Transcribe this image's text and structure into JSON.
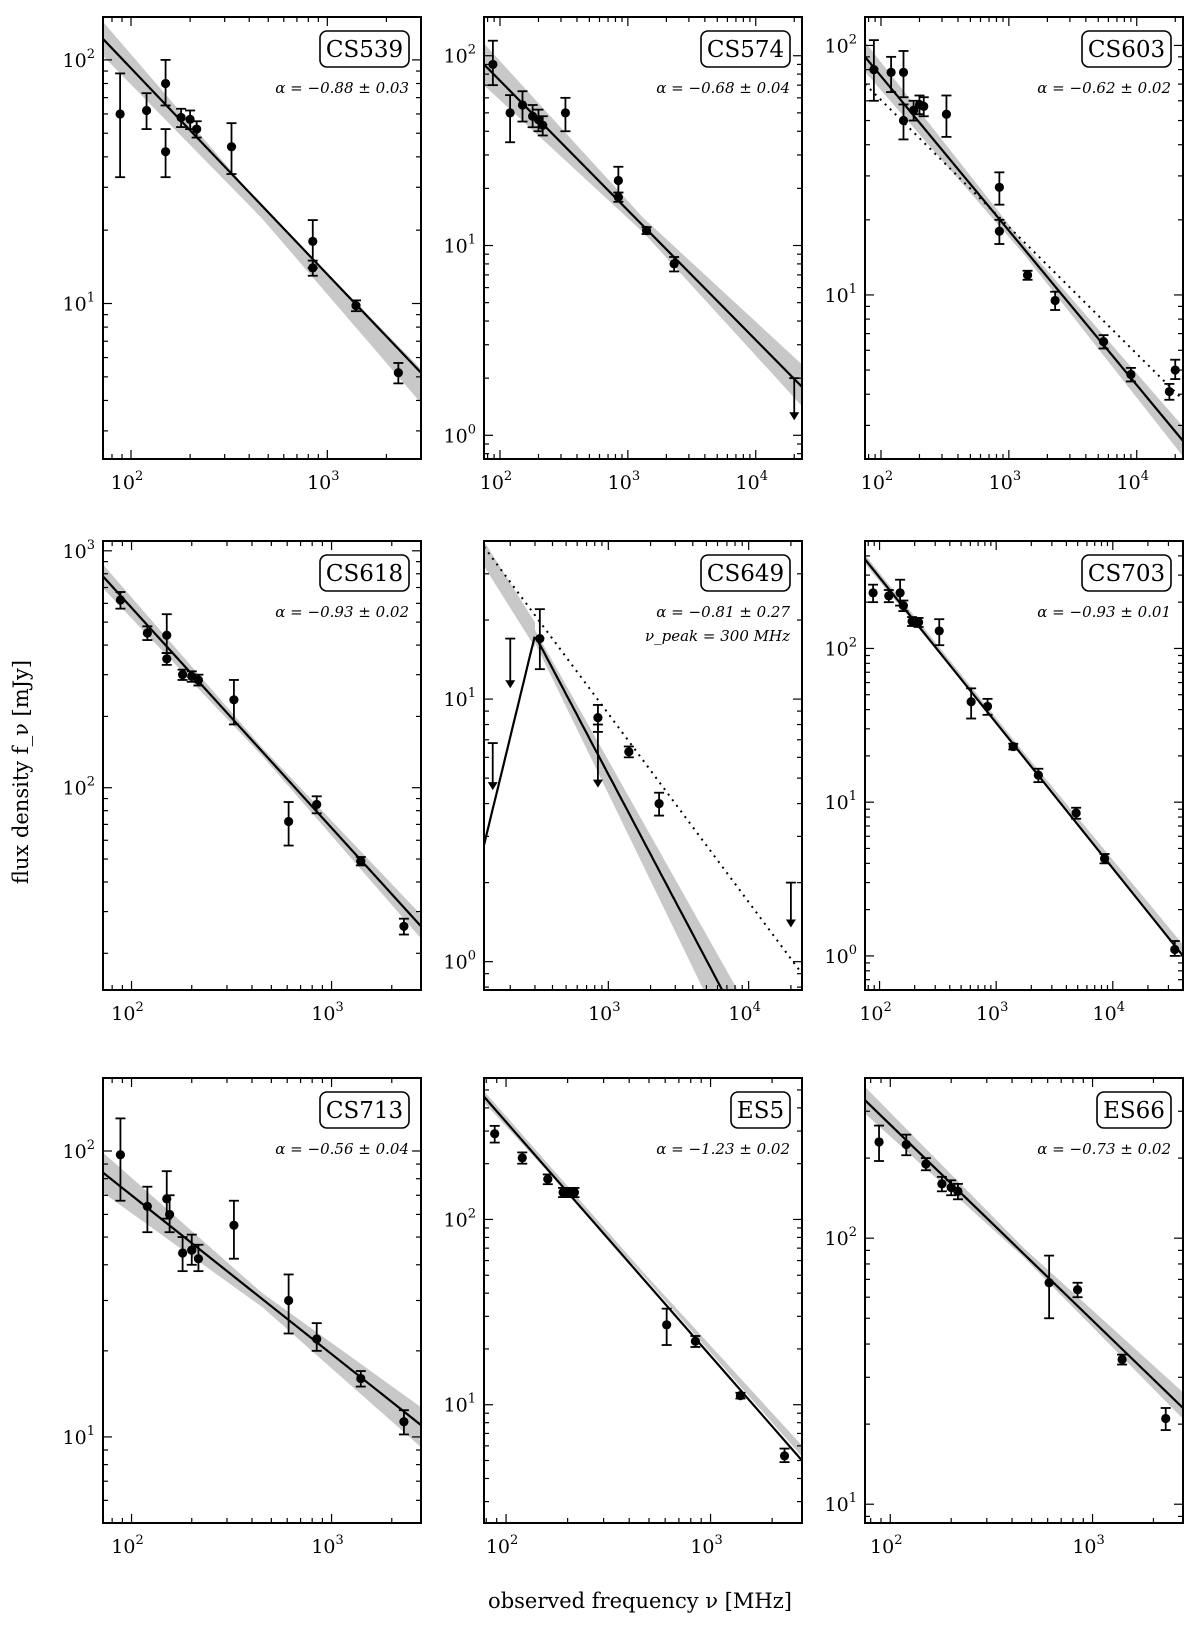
{
  "figure": {
    "xlabel": "observed frequency ν [MHz]",
    "ylabel": "flux density f_ν [mJy]"
  },
  "chart_data": [
    {
      "type": "scatter",
      "source": "CS539",
      "alpha_text": "α = −0.88 ± 0.03",
      "xlim": [
        72,
        3000
      ],
      "ylim": [
        2.3,
        150
      ],
      "xticks": [
        2,
        3
      ],
      "yticks": [
        1,
        2
      ],
      "fit": {
        "slope": -0.88,
        "x1": 72,
        "y1": 122,
        "x2": 3000,
        "y2": 5.2,
        "band": 0.07
      },
      "points": [
        {
          "x": 88,
          "y": 60,
          "lo": 33,
          "hi": 88
        },
        {
          "x": 120,
          "y": 62,
          "lo": 52,
          "hi": 73
        },
        {
          "x": 150,
          "y": 80,
          "lo": 65,
          "hi": 100
        },
        {
          "x": 150,
          "y": 42,
          "lo": 33,
          "hi": 52
        },
        {
          "x": 180,
          "y": 58,
          "lo": 53,
          "hi": 63
        },
        {
          "x": 200,
          "y": 57,
          "lo": 52,
          "hi": 62
        },
        {
          "x": 216,
          "y": 52,
          "lo": 48,
          "hi": 56
        },
        {
          "x": 325,
          "y": 44,
          "lo": 34,
          "hi": 55
        },
        {
          "x": 843,
          "y": 18,
          "lo": 14,
          "hi": 22
        },
        {
          "x": 843,
          "y": 14,
          "lo": 13,
          "hi": 15
        },
        {
          "x": 1400,
          "y": 9.8,
          "lo": 9.3,
          "hi": 10.3
        },
        {
          "x": 2300,
          "y": 5.2,
          "lo": 4.7,
          "hi": 5.7
        }
      ],
      "limits": []
    },
    {
      "type": "scatter",
      "source": "CS574",
      "alpha_text": "α = −0.68 ± 0.04",
      "xlim": [
        75,
        23000
      ],
      "ylim": [
        0.75,
        160
      ],
      "xticks": [
        2,
        3,
        4
      ],
      "yticks": [
        0,
        1,
        2
      ],
      "fit": {
        "slope": -0.68,
        "x1": 75,
        "y1": 90,
        "x2": 23000,
        "y2": 1.8,
        "band": 0.11
      },
      "points": [
        {
          "x": 88,
          "y": 90,
          "lo": 70,
          "hi": 120
        },
        {
          "x": 120,
          "y": 50,
          "lo": 35,
          "hi": 62
        },
        {
          "x": 150,
          "y": 55,
          "lo": 45,
          "hi": 65
        },
        {
          "x": 180,
          "y": 48,
          "lo": 42,
          "hi": 55
        },
        {
          "x": 200,
          "y": 46,
          "lo": 40,
          "hi": 52
        },
        {
          "x": 216,
          "y": 43,
          "lo": 38,
          "hi": 48
        },
        {
          "x": 325,
          "y": 50,
          "lo": 40,
          "hi": 60
        },
        {
          "x": 843,
          "y": 22,
          "lo": 19,
          "hi": 26
        },
        {
          "x": 843,
          "y": 18,
          "lo": 17,
          "hi": 19
        },
        {
          "x": 1400,
          "y": 12,
          "lo": 11.5,
          "hi": 12.5
        },
        {
          "x": 2300,
          "y": 8,
          "lo": 7.3,
          "hi": 8.7
        }
      ],
      "limits": [
        {
          "x": 20000,
          "y": 2.0,
          "tip": 1.2
        }
      ]
    },
    {
      "type": "scatter",
      "source": "CS603",
      "alpha_text": "α = −0.62 ± 0.02",
      "xlim": [
        75,
        23000
      ],
      "ylim": [
        2.2,
        130
      ],
      "xticks": [
        2,
        3,
        4
      ],
      "yticks": [
        1,
        2
      ],
      "fit": {
        "slope": -0.62,
        "x1": 75,
        "y1": 90,
        "x2": 23000,
        "y2": 2.6,
        "band": 0.06
      },
      "dotted": {
        "x1": 75,
        "y1": 70,
        "x2": 23000,
        "y2": 3.8
      },
      "points": [
        {
          "x": 88,
          "y": 80,
          "lo": 60,
          "hi": 105
        },
        {
          "x": 120,
          "y": 78,
          "lo": 65,
          "hi": 90
        },
        {
          "x": 150,
          "y": 78,
          "lo": 62,
          "hi": 95
        },
        {
          "x": 150,
          "y": 50,
          "lo": 42,
          "hi": 58
        },
        {
          "x": 180,
          "y": 55,
          "lo": 50,
          "hi": 60
        },
        {
          "x": 200,
          "y": 58,
          "lo": 53,
          "hi": 63
        },
        {
          "x": 216,
          "y": 57,
          "lo": 52,
          "hi": 62
        },
        {
          "x": 325,
          "y": 53,
          "lo": 43,
          "hi": 63
        },
        {
          "x": 843,
          "y": 27,
          "lo": 23,
          "hi": 31
        },
        {
          "x": 843,
          "y": 18,
          "lo": 16,
          "hi": 20
        },
        {
          "x": 1400,
          "y": 12,
          "lo": 11.5,
          "hi": 12.5
        },
        {
          "x": 2300,
          "y": 9.5,
          "lo": 8.7,
          "hi": 10.3
        },
        {
          "x": 5500,
          "y": 6.5,
          "lo": 6.1,
          "hi": 6.9
        },
        {
          "x": 9000,
          "y": 4.8,
          "lo": 4.5,
          "hi": 5.1
        },
        {
          "x": 18000,
          "y": 4.1,
          "lo": 3.8,
          "hi": 4.4
        },
        {
          "x": 20000,
          "y": 5.0,
          "lo": 4.6,
          "hi": 5.5
        }
      ],
      "limits": []
    },
    {
      "type": "scatter",
      "source": "CS618",
      "alpha_text": "α = −0.93 ± 0.02",
      "xlim": [
        72,
        2800
      ],
      "ylim": [
        14,
        1100
      ],
      "xticks": [
        2,
        3
      ],
      "yticks": [
        2,
        3
      ],
      "fit": {
        "slope": -0.93,
        "x1": 72,
        "y1": 780,
        "x2": 2800,
        "y2": 26,
        "band": 0.05
      },
      "points": [
        {
          "x": 88,
          "y": 620,
          "lo": 570,
          "hi": 670
        },
        {
          "x": 120,
          "y": 450,
          "lo": 420,
          "hi": 480
        },
        {
          "x": 150,
          "y": 440,
          "lo": 370,
          "hi": 540
        },
        {
          "x": 150,
          "y": 350,
          "lo": 330,
          "hi": 370
        },
        {
          "x": 180,
          "y": 300,
          "lo": 285,
          "hi": 315
        },
        {
          "x": 200,
          "y": 295,
          "lo": 280,
          "hi": 310
        },
        {
          "x": 216,
          "y": 285,
          "lo": 270,
          "hi": 300
        },
        {
          "x": 325,
          "y": 235,
          "lo": 185,
          "hi": 285
        },
        {
          "x": 610,
          "y": 72,
          "lo": 57,
          "hi": 87
        },
        {
          "x": 843,
          "y": 85,
          "lo": 78,
          "hi": 92
        },
        {
          "x": 1400,
          "y": 49,
          "lo": 47,
          "hi": 51
        },
        {
          "x": 2300,
          "y": 26,
          "lo": 24,
          "hi": 28
        }
      ],
      "limits": []
    },
    {
      "type": "scatter",
      "source": "CS649",
      "alpha_text": "α = −0.81 ± 0.27",
      "peak_text": "ν_peak = 300 MHz",
      "xlim": [
        130,
        24000
      ],
      "ylim": [
        0.78,
        40
      ],
      "xticks": [
        3,
        4
      ],
      "yticks": [
        0,
        1
      ],
      "curve": {
        "peak_nu": 300,
        "peak_s": 17.5,
        "alpha": -0.81,
        "rise": 2.2
      },
      "dotted": {
        "x1": 130,
        "y1": 38,
        "x2": 24000,
        "y2": 0.9
      },
      "band_shape": "peaked",
      "points": [
        {
          "x": 325,
          "y": 17,
          "lo": 13,
          "hi": 22
        },
        {
          "x": 843,
          "y": 8.5,
          "lo": 7.5,
          "hi": 9.5
        },
        {
          "x": 1400,
          "y": 6.3,
          "lo": 6.0,
          "hi": 6.6
        },
        {
          "x": 2300,
          "y": 4.0,
          "lo": 3.6,
          "hi": 4.4
        }
      ],
      "limits": [
        {
          "x": 150,
          "y": 6.8,
          "tip": 4.5
        },
        {
          "x": 200,
          "y": 17,
          "tip": 11
        },
        {
          "x": 843,
          "y": 8.0,
          "tip": 4.6
        },
        {
          "x": 20000,
          "y": 2.0,
          "tip": 1.35
        }
      ]
    },
    {
      "type": "scatter",
      "source": "CS703",
      "alpha_text": "α = −0.93 ± 0.01",
      "xlim": [
        75,
        40000
      ],
      "ylim": [
        0.6,
        500
      ],
      "xticks": [
        2,
        3,
        4
      ],
      "yticks": [
        0,
        1,
        2
      ],
      "fit": {
        "slope": -0.93,
        "x1": 75,
        "y1": 380,
        "x2": 40000,
        "y2": 1.0,
        "band": 0.03
      },
      "points": [
        {
          "x": 88,
          "y": 230,
          "lo": 200,
          "hi": 260
        },
        {
          "x": 120,
          "y": 220,
          "lo": 200,
          "hi": 240
        },
        {
          "x": 150,
          "y": 230,
          "lo": 190,
          "hi": 280
        },
        {
          "x": 160,
          "y": 190,
          "lo": 175,
          "hi": 205
        },
        {
          "x": 190,
          "y": 150,
          "lo": 140,
          "hi": 160
        },
        {
          "x": 216,
          "y": 148,
          "lo": 138,
          "hi": 158
        },
        {
          "x": 325,
          "y": 130,
          "lo": 105,
          "hi": 155
        },
        {
          "x": 610,
          "y": 45,
          "lo": 35,
          "hi": 55
        },
        {
          "x": 843,
          "y": 42,
          "lo": 37,
          "hi": 47
        },
        {
          "x": 1400,
          "y": 23,
          "lo": 22,
          "hi": 24
        },
        {
          "x": 2300,
          "y": 15,
          "lo": 13.5,
          "hi": 16.5
        },
        {
          "x": 4850,
          "y": 8.5,
          "lo": 7.8,
          "hi": 9.2
        },
        {
          "x": 8500,
          "y": 4.3,
          "lo": 4.0,
          "hi": 4.6
        },
        {
          "x": 34000,
          "y": 1.1,
          "lo": 1.0,
          "hi": 1.25
        }
      ],
      "limits": []
    },
    {
      "type": "scatter",
      "source": "CS713",
      "alpha_text": "α = −0.56 ± 0.04",
      "xlim": [
        72,
        2800
      ],
      "ylim": [
        5,
        180
      ],
      "xticks": [
        2,
        3
      ],
      "yticks": [
        1,
        2
      ],
      "fit": {
        "slope": -0.56,
        "x1": 72,
        "y1": 84,
        "x2": 2800,
        "y2": 11,
        "band": 0.07
      },
      "points": [
        {
          "x": 88,
          "y": 97,
          "lo": 67,
          "hi": 130
        },
        {
          "x": 120,
          "y": 64,
          "lo": 52,
          "hi": 75
        },
        {
          "x": 150,
          "y": 68,
          "lo": 58,
          "hi": 85
        },
        {
          "x": 155,
          "y": 60,
          "lo": 52,
          "hi": 70
        },
        {
          "x": 180,
          "y": 44,
          "lo": 38,
          "hi": 50
        },
        {
          "x": 200,
          "y": 45,
          "lo": 40,
          "hi": 51
        },
        {
          "x": 216,
          "y": 42,
          "lo": 38,
          "hi": 47
        },
        {
          "x": 325,
          "y": 55,
          "lo": 42,
          "hi": 67
        },
        {
          "x": 610,
          "y": 30,
          "lo": 23,
          "hi": 37
        },
        {
          "x": 843,
          "y": 22,
          "lo": 20,
          "hi": 25
        },
        {
          "x": 1400,
          "y": 16,
          "lo": 15,
          "hi": 17
        },
        {
          "x": 2300,
          "y": 11.3,
          "lo": 10.2,
          "hi": 12.4
        }
      ],
      "limits": []
    },
    {
      "type": "scatter",
      "source": "ES5",
      "alpha_text": "α = −1.23 ± 0.02",
      "xlim": [
        78,
        2800
      ],
      "ylim": [
        2.3,
        580
      ],
      "xticks": [
        2,
        3
      ],
      "yticks": [
        1,
        2
      ],
      "fit": {
        "slope": -1.23,
        "x1": 78,
        "y1": 460,
        "x2": 2800,
        "y2": 5.0,
        "band": 0.03
      },
      "points": [
        {
          "x": 88,
          "y": 290,
          "lo": 260,
          "hi": 320
        },
        {
          "x": 120,
          "y": 215,
          "lo": 200,
          "hi": 230
        },
        {
          "x": 160,
          "y": 165,
          "lo": 155,
          "hi": 175
        },
        {
          "x": 190,
          "y": 140,
          "lo": 132,
          "hi": 148
        },
        {
          "x": 200,
          "y": 140,
          "lo": 132,
          "hi": 148
        },
        {
          "x": 216,
          "y": 140,
          "lo": 132,
          "hi": 148
        },
        {
          "x": 610,
          "y": 27,
          "lo": 21,
          "hi": 33
        },
        {
          "x": 843,
          "y": 22,
          "lo": 20.5,
          "hi": 23.5
        },
        {
          "x": 1400,
          "y": 11.2,
          "lo": 10.8,
          "hi": 11.6
        },
        {
          "x": 2300,
          "y": 5.3,
          "lo": 4.9,
          "hi": 5.8
        }
      ],
      "limits": []
    },
    {
      "type": "scatter",
      "source": "ES66",
      "alpha_text": "α = −0.73 ± 0.02",
      "xlim": [
        75,
        2800
      ],
      "ylim": [
        8.5,
        400
      ],
      "xticks": [
        2,
        3
      ],
      "yticks": [
        1,
        2
      ],
      "fit": {
        "slope": -0.73,
        "x1": 75,
        "y1": 330,
        "x2": 2800,
        "y2": 23,
        "band": 0.05
      },
      "points": [
        {
          "x": 88,
          "y": 230,
          "lo": 195,
          "hi": 265
        },
        {
          "x": 120,
          "y": 225,
          "lo": 205,
          "hi": 245
        },
        {
          "x": 150,
          "y": 190,
          "lo": 180,
          "hi": 200
        },
        {
          "x": 180,
          "y": 160,
          "lo": 150,
          "hi": 170
        },
        {
          "x": 200,
          "y": 155,
          "lo": 145,
          "hi": 165
        },
        {
          "x": 216,
          "y": 150,
          "lo": 140,
          "hi": 160
        },
        {
          "x": 610,
          "y": 68,
          "lo": 50,
          "hi": 86
        },
        {
          "x": 843,
          "y": 64,
          "lo": 60,
          "hi": 68
        },
        {
          "x": 1400,
          "y": 35,
          "lo": 33.5,
          "hi": 36.5
        },
        {
          "x": 2300,
          "y": 21,
          "lo": 19,
          "hi": 23
        }
      ],
      "limits": []
    }
  ]
}
